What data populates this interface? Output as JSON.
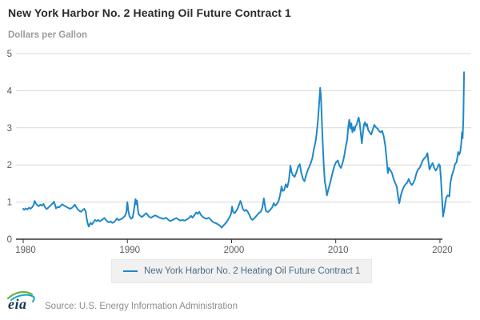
{
  "header": {
    "title": "New York Harbor No. 2 Heating Oil Future Contract 1",
    "units": "Dollars per Gallon"
  },
  "legend": {
    "label": "New York Harbor No. 2 Heating Oil Future Contract 1"
  },
  "footer": {
    "logo_text": "eia",
    "source": "Source: U.S. Energy Information Administration"
  },
  "chart_data": {
    "type": "line",
    "title": "New York Harbor No. 2 Heating Oil Future Contract 1",
    "xlabel": "",
    "ylabel": "Dollars per Gallon",
    "series_name": "New York Harbor No. 2 Heating Oil Future Contract 1",
    "legend_position": "bottom",
    "grid": true,
    "x_ticks": [
      1980,
      1990,
      2000,
      2010,
      2020
    ],
    "y_ticks": [
      0,
      1,
      2,
      3,
      4,
      5
    ],
    "x_range": [
      1980,
      2023
    ],
    "ylim": [
      0,
      5
    ],
    "colors": {
      "line": "#1f88c9",
      "grid": "#d9d9d9",
      "axis": "#333333",
      "tick_text": "#595959"
    },
    "points": [
      [
        1980.0,
        0.82
      ],
      [
        1980.1,
        0.79
      ],
      [
        1980.25,
        0.83
      ],
      [
        1980.4,
        0.8
      ],
      [
        1980.55,
        0.85
      ],
      [
        1980.7,
        0.82
      ],
      [
        1980.85,
        0.86
      ],
      [
        1981.0,
        0.92
      ],
      [
        1981.1,
        1.03
      ],
      [
        1981.2,
        0.97
      ],
      [
        1981.35,
        0.92
      ],
      [
        1981.5,
        0.89
      ],
      [
        1981.65,
        0.93
      ],
      [
        1981.8,
        0.9
      ],
      [
        1981.95,
        0.95
      ],
      [
        1982.1,
        0.86
      ],
      [
        1982.25,
        0.81
      ],
      [
        1982.4,
        0.85
      ],
      [
        1982.55,
        0.89
      ],
      [
        1982.7,
        0.93
      ],
      [
        1982.85,
        0.97
      ],
      [
        1982.95,
        1.01
      ],
      [
        1983.05,
        0.93
      ],
      [
        1983.15,
        0.83
      ],
      [
        1983.3,
        0.87
      ],
      [
        1983.45,
        0.86
      ],
      [
        1983.6,
        0.9
      ],
      [
        1983.75,
        0.94
      ],
      [
        1983.9,
        0.91
      ],
      [
        1984.05,
        0.89
      ],
      [
        1984.2,
        0.86
      ],
      [
        1984.35,
        0.84
      ],
      [
        1984.5,
        0.82
      ],
      [
        1984.65,
        0.84
      ],
      [
        1984.8,
        0.88
      ],
      [
        1984.95,
        0.93
      ],
      [
        1985.1,
        0.86
      ],
      [
        1985.25,
        0.8
      ],
      [
        1985.4,
        0.76
      ],
      [
        1985.55,
        0.74
      ],
      [
        1985.7,
        0.78
      ],
      [
        1985.85,
        0.82
      ],
      [
        1986.0,
        0.75
      ],
      [
        1986.1,
        0.55
      ],
      [
        1986.2,
        0.42
      ],
      [
        1986.3,
        0.34
      ],
      [
        1986.45,
        0.44
      ],
      [
        1986.6,
        0.4
      ],
      [
        1986.75,
        0.46
      ],
      [
        1986.9,
        0.52
      ],
      [
        1987.05,
        0.49
      ],
      [
        1987.2,
        0.52
      ],
      [
        1987.35,
        0.48
      ],
      [
        1987.5,
        0.51
      ],
      [
        1987.65,
        0.54
      ],
      [
        1987.8,
        0.57
      ],
      [
        1987.95,
        0.52
      ],
      [
        1988.1,
        0.47
      ],
      [
        1988.25,
        0.45
      ],
      [
        1988.4,
        0.48
      ],
      [
        1988.55,
        0.44
      ],
      [
        1988.7,
        0.46
      ],
      [
        1988.85,
        0.5
      ],
      [
        1989.0,
        0.56
      ],
      [
        1989.15,
        0.51
      ],
      [
        1989.3,
        0.53
      ],
      [
        1989.45,
        0.55
      ],
      [
        1989.6,
        0.58
      ],
      [
        1989.75,
        0.62
      ],
      [
        1989.9,
        0.72
      ],
      [
        1990.0,
        1.0
      ],
      [
        1990.08,
        0.78
      ],
      [
        1990.2,
        0.62
      ],
      [
        1990.35,
        0.55
      ],
      [
        1990.5,
        0.58
      ],
      [
        1990.6,
        0.72
      ],
      [
        1990.7,
        0.92
      ],
      [
        1990.78,
        1.08
      ],
      [
        1990.85,
        0.94
      ],
      [
        1990.93,
        1.04
      ],
      [
        1991.0,
        0.82
      ],
      [
        1991.08,
        0.67
      ],
      [
        1991.2,
        0.64
      ],
      [
        1991.35,
        0.6
      ],
      [
        1991.5,
        0.62
      ],
      [
        1991.65,
        0.66
      ],
      [
        1991.8,
        0.7
      ],
      [
        1991.95,
        0.65
      ],
      [
        1992.1,
        0.6
      ],
      [
        1992.3,
        0.58
      ],
      [
        1992.5,
        0.62
      ],
      [
        1992.7,
        0.64
      ],
      [
        1992.9,
        0.61
      ],
      [
        1993.1,
        0.58
      ],
      [
        1993.3,
        0.56
      ],
      [
        1993.5,
        0.55
      ],
      [
        1993.7,
        0.58
      ],
      [
        1993.9,
        0.53
      ],
      [
        1994.1,
        0.49
      ],
      [
        1994.3,
        0.51
      ],
      [
        1994.5,
        0.54
      ],
      [
        1994.7,
        0.57
      ],
      [
        1994.9,
        0.53
      ],
      [
        1995.1,
        0.5
      ],
      [
        1995.3,
        0.52
      ],
      [
        1995.5,
        0.5
      ],
      [
        1995.7,
        0.53
      ],
      [
        1995.9,
        0.57
      ],
      [
        1996.1,
        0.63
      ],
      [
        1996.25,
        0.58
      ],
      [
        1996.45,
        0.65
      ],
      [
        1996.6,
        0.72
      ],
      [
        1996.75,
        0.68
      ],
      [
        1996.9,
        0.74
      ],
      [
        1997.05,
        0.66
      ],
      [
        1997.2,
        0.61
      ],
      [
        1997.4,
        0.57
      ],
      [
        1997.6,
        0.55
      ],
      [
        1997.8,
        0.58
      ],
      [
        1997.95,
        0.54
      ],
      [
        1998.1,
        0.49
      ],
      [
        1998.3,
        0.45
      ],
      [
        1998.5,
        0.43
      ],
      [
        1998.7,
        0.4
      ],
      [
        1998.9,
        0.36
      ],
      [
        1999.05,
        0.31
      ],
      [
        1999.2,
        0.36
      ],
      [
        1999.4,
        0.42
      ],
      [
        1999.6,
        0.5
      ],
      [
        1999.8,
        0.59
      ],
      [
        1999.95,
        0.68
      ],
      [
        2000.05,
        0.88
      ],
      [
        2000.15,
        0.74
      ],
      [
        2000.3,
        0.7
      ],
      [
        2000.45,
        0.76
      ],
      [
        2000.6,
        0.84
      ],
      [
        2000.75,
        0.95
      ],
      [
        2000.85,
        1.03
      ],
      [
        2000.95,
        0.96
      ],
      [
        2001.1,
        0.8
      ],
      [
        2001.25,
        0.76
      ],
      [
        2001.4,
        0.79
      ],
      [
        2001.55,
        0.74
      ],
      [
        2001.7,
        0.66
      ],
      [
        2001.85,
        0.56
      ],
      [
        2002.0,
        0.52
      ],
      [
        2002.2,
        0.57
      ],
      [
        2002.4,
        0.63
      ],
      [
        2002.6,
        0.7
      ],
      [
        2002.8,
        0.74
      ],
      [
        2002.95,
        0.85
      ],
      [
        2003.1,
        1.1
      ],
      [
        2003.2,
        0.92
      ],
      [
        2003.3,
        0.76
      ],
      [
        2003.5,
        0.73
      ],
      [
        2003.7,
        0.79
      ],
      [
        2003.9,
        0.86
      ],
      [
        2004.05,
        0.97
      ],
      [
        2004.2,
        0.9
      ],
      [
        2004.35,
        0.95
      ],
      [
        2004.5,
        1.02
      ],
      [
        2004.65,
        1.18
      ],
      [
        2004.8,
        1.42
      ],
      [
        2004.9,
        1.3
      ],
      [
        2005.05,
        1.32
      ],
      [
        2005.2,
        1.48
      ],
      [
        2005.35,
        1.4
      ],
      [
        2005.5,
        1.58
      ],
      [
        2005.65,
        1.98
      ],
      [
        2005.75,
        1.82
      ],
      [
        2005.9,
        1.72
      ],
      [
        2006.05,
        1.68
      ],
      [
        2006.2,
        1.78
      ],
      [
        2006.4,
        1.96
      ],
      [
        2006.55,
        2.02
      ],
      [
        2006.7,
        1.78
      ],
      [
        2006.85,
        1.62
      ],
      [
        2007.0,
        1.56
      ],
      [
        2007.15,
        1.72
      ],
      [
        2007.3,
        1.85
      ],
      [
        2007.45,
        1.95
      ],
      [
        2007.6,
        2.05
      ],
      [
        2007.75,
        2.18
      ],
      [
        2007.9,
        2.42
      ],
      [
        2008.0,
        2.55
      ],
      [
        2008.1,
        2.7
      ],
      [
        2008.2,
        2.95
      ],
      [
        2008.3,
        3.25
      ],
      [
        2008.4,
        3.65
      ],
      [
        2008.5,
        4.08
      ],
      [
        2008.58,
        3.85
      ],
      [
        2008.65,
        3.3
      ],
      [
        2008.75,
        2.6
      ],
      [
        2008.85,
        2.0
      ],
      [
        2008.95,
        1.55
      ],
      [
        2009.05,
        1.4
      ],
      [
        2009.15,
        1.18
      ],
      [
        2009.3,
        1.35
      ],
      [
        2009.45,
        1.5
      ],
      [
        2009.6,
        1.68
      ],
      [
        2009.75,
        1.85
      ],
      [
        2009.9,
        2.0
      ],
      [
        2010.05,
        2.08
      ],
      [
        2010.2,
        2.12
      ],
      [
        2010.35,
        1.98
      ],
      [
        2010.5,
        1.92
      ],
      [
        2010.65,
        2.05
      ],
      [
        2010.8,
        2.22
      ],
      [
        2010.95,
        2.48
      ],
      [
        2011.1,
        2.68
      ],
      [
        2011.2,
        3.02
      ],
      [
        2011.3,
        3.22
      ],
      [
        2011.4,
        2.98
      ],
      [
        2011.5,
        3.12
      ],
      [
        2011.6,
        2.88
      ],
      [
        2011.7,
        3.02
      ],
      [
        2011.8,
        2.92
      ],
      [
        2011.9,
        3.05
      ],
      [
        2012.0,
        3.08
      ],
      [
        2012.1,
        3.18
      ],
      [
        2012.2,
        3.28
      ],
      [
        2012.3,
        3.12
      ],
      [
        2012.4,
        2.85
      ],
      [
        2012.5,
        2.58
      ],
      [
        2012.6,
        2.85
      ],
      [
        2012.7,
        3.08
      ],
      [
        2012.8,
        3.15
      ],
      [
        2012.9,
        3.05
      ],
      [
        2013.0,
        3.1
      ],
      [
        2013.1,
        2.95
      ],
      [
        2013.25,
        2.88
      ],
      [
        2013.4,
        2.82
      ],
      [
        2013.55,
        2.95
      ],
      [
        2013.7,
        3.08
      ],
      [
        2013.85,
        3.02
      ],
      [
        2014.0,
        2.98
      ],
      [
        2014.15,
        2.92
      ],
      [
        2014.3,
        2.88
      ],
      [
        2014.45,
        2.92
      ],
      [
        2014.6,
        2.78
      ],
      [
        2014.75,
        2.52
      ],
      [
        2014.9,
        2.1
      ],
      [
        2015.0,
        1.78
      ],
      [
        2015.1,
        1.92
      ],
      [
        2015.25,
        1.85
      ],
      [
        2015.4,
        1.78
      ],
      [
        2015.55,
        1.62
      ],
      [
        2015.7,
        1.52
      ],
      [
        2015.85,
        1.42
      ],
      [
        2016.0,
        1.12
      ],
      [
        2016.1,
        0.97
      ],
      [
        2016.25,
        1.18
      ],
      [
        2016.4,
        1.32
      ],
      [
        2016.55,
        1.42
      ],
      [
        2016.7,
        1.48
      ],
      [
        2016.85,
        1.52
      ],
      [
        2017.0,
        1.62
      ],
      [
        2017.15,
        1.52
      ],
      [
        2017.3,
        1.46
      ],
      [
        2017.45,
        1.52
      ],
      [
        2017.6,
        1.62
      ],
      [
        2017.75,
        1.78
      ],
      [
        2017.9,
        1.88
      ],
      [
        2018.05,
        1.92
      ],
      [
        2018.2,
        2.02
      ],
      [
        2018.35,
        2.12
      ],
      [
        2018.5,
        2.18
      ],
      [
        2018.65,
        2.22
      ],
      [
        2018.8,
        2.32
      ],
      [
        2018.9,
        2.08
      ],
      [
        2019.0,
        1.88
      ],
      [
        2019.15,
        1.98
      ],
      [
        2019.3,
        2.05
      ],
      [
        2019.45,
        1.92
      ],
      [
        2019.6,
        1.85
      ],
      [
        2019.75,
        1.92
      ],
      [
        2019.9,
        2.02
      ],
      [
        2020.0,
        1.98
      ],
      [
        2020.1,
        1.62
      ],
      [
        2020.2,
        1.12
      ],
      [
        2020.3,
        0.61
      ],
      [
        2020.45,
        0.85
      ],
      [
        2020.6,
        1.12
      ],
      [
        2020.75,
        1.18
      ],
      [
        2020.9,
        1.15
      ],
      [
        2021.0,
        1.52
      ],
      [
        2021.15,
        1.72
      ],
      [
        2021.3,
        1.85
      ],
      [
        2021.45,
        2.02
      ],
      [
        2021.6,
        2.08
      ],
      [
        2021.75,
        2.35
      ],
      [
        2021.85,
        2.28
      ],
      [
        2021.95,
        2.35
      ],
      [
        2022.05,
        2.58
      ],
      [
        2022.12,
        2.88
      ],
      [
        2022.18,
        2.72
      ],
      [
        2022.25,
        3.25
      ],
      [
        2022.32,
        4.5
      ]
    ]
  }
}
